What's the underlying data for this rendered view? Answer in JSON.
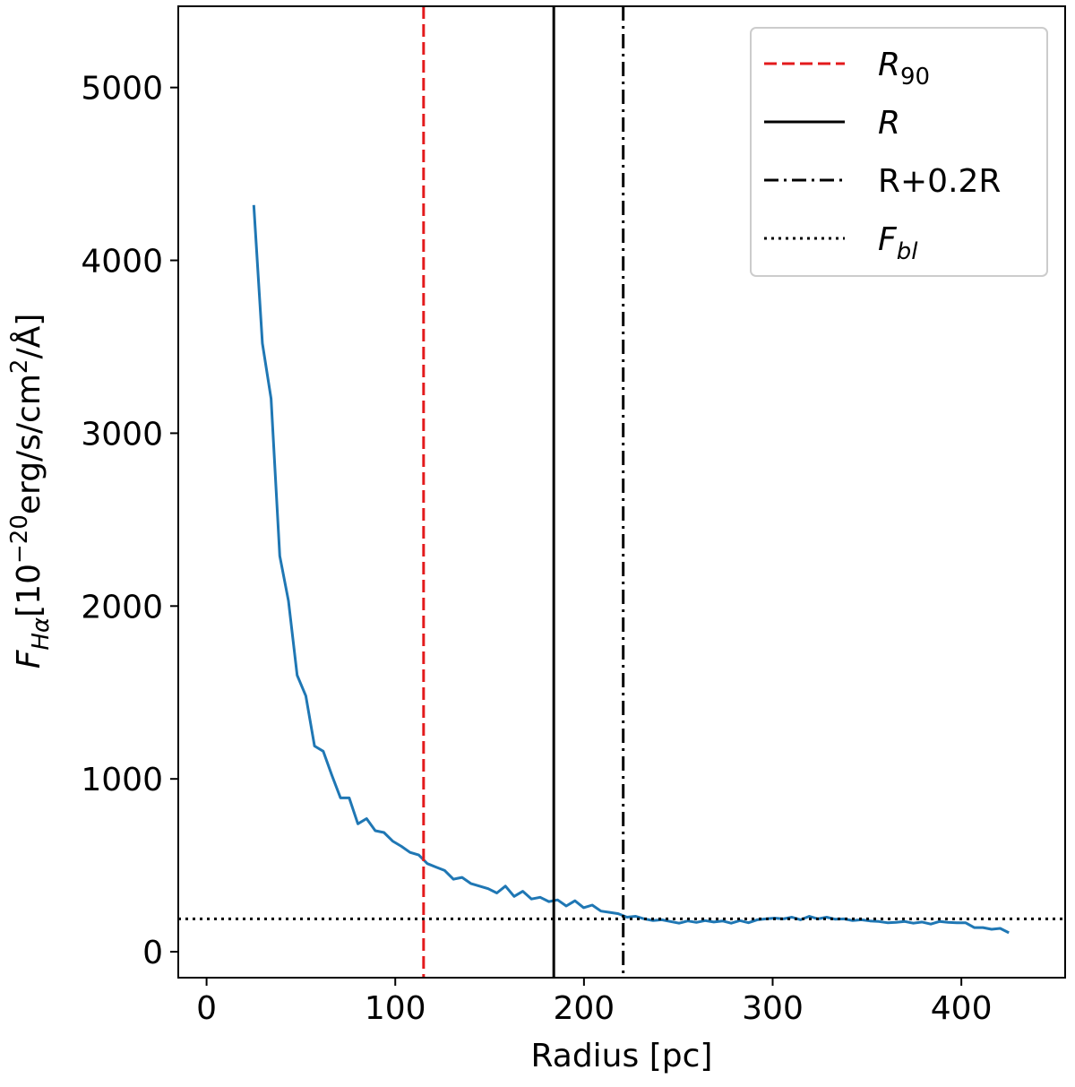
{
  "chart_data": {
    "type": "line",
    "title": "",
    "xlabel": "Radius [pc]",
    "ylabel": {
      "symbol": "F",
      "subscript": "Hα",
      "unit_prefix": "[10",
      "unit_exponent": "−20",
      "unit_mid": "erg/s/cm",
      "unit_exponent2": "2",
      "unit_suffix": "/Å]"
    },
    "xlim": [
      -15,
      455
    ],
    "ylim": [
      -150,
      5470
    ],
    "xticks": [
      0,
      100,
      200,
      300,
      400
    ],
    "yticks": [
      0,
      1000,
      2000,
      3000,
      4000,
      5000
    ],
    "grid": false,
    "legend_position": "top-right",
    "series": [
      {
        "color": "#1f77b4",
        "x": [
          25,
          29.6,
          34.2,
          38.8,
          43.4,
          48,
          52.6,
          57.2,
          61.8,
          66.4,
          71,
          75.6,
          80.2,
          84.8,
          89.4,
          94,
          98.6,
          103.2,
          107.8,
          112.4,
          117,
          121.6,
          126.2,
          130.8,
          135.4,
          140,
          144.6,
          149.2,
          153.8,
          158.4,
          163,
          167.6,
          172.2,
          176.8,
          181.4,
          186,
          190.6,
          195.2,
          199.8,
          204.4,
          209,
          213.6,
          218.2,
          222.8,
          227.4,
          232,
          236.6,
          241.2,
          245.8,
          250.4,
          255,
          259.6,
          264.2,
          268.8,
          273.4,
          278,
          282.6,
          287.2,
          291.8,
          296.4,
          301,
          305.6,
          310.2,
          314.8,
          319.4,
          324,
          328.6,
          333.2,
          337.8,
          342.4,
          347,
          351.6,
          356.2,
          360.8,
          365.4,
          370,
          374.6,
          379.2,
          383.8,
          388.4,
          393,
          397.6,
          402.2,
          406.8,
          411.4,
          416,
          420.6,
          425.2
        ],
        "y": [
          4320,
          3520,
          3200,
          2290,
          2030,
          1600,
          1480,
          1190,
          1160,
          1020,
          890,
          890,
          740,
          770,
          700,
          690,
          640,
          610,
          575,
          560,
          510,
          490,
          470,
          420,
          430,
          395,
          380,
          365,
          340,
          380,
          320,
          350,
          305,
          315,
          290,
          300,
          265,
          295,
          255,
          270,
          235,
          228,
          220,
          200,
          205,
          190,
          180,
          185,
          175,
          165,
          178,
          170,
          180,
          172,
          178,
          165,
          180,
          168,
          185,
          190,
          195,
          190,
          200,
          185,
          205,
          190,
          200,
          188,
          190,
          180,
          185,
          178,
          175,
          168,
          170,
          175,
          165,
          172,
          160,
          175,
          170,
          168,
          168,
          140,
          140,
          130,
          135,
          110
        ]
      }
    ],
    "vlines": [
      {
        "x": 115,
        "color": "#e31a1c",
        "style": "dashed"
      },
      {
        "x": 184,
        "color": "#000000",
        "style": "solid"
      },
      {
        "x": 220.8,
        "color": "#000000",
        "style": "dashdot"
      }
    ],
    "hlines": [
      {
        "y": 190,
        "color": "#000000",
        "style": "dotted"
      }
    ],
    "legend": [
      {
        "label_main": "R",
        "label_sub": "90",
        "italic": true,
        "style": "dashed",
        "color": "#e31a1c"
      },
      {
        "label_main": "R",
        "label_sub": "",
        "italic": true,
        "style": "solid",
        "color": "#000000"
      },
      {
        "label_main": "R+0.2R",
        "label_sub": "",
        "italic": false,
        "style": "dashdot",
        "color": "#000000"
      },
      {
        "label_main": "F",
        "label_sub": "bl",
        "italic": true,
        "style": "dotted",
        "color": "#000000"
      }
    ]
  }
}
